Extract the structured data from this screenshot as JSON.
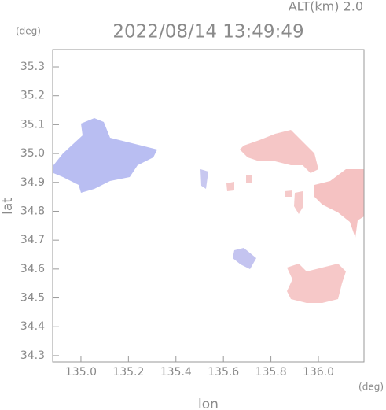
{
  "chart_data": {
    "type": "map",
    "title": "2022/08/14 13:49:49",
    "subtitle": "ALT(km) 2.0",
    "y_unit": "(deg)",
    "x_unit": "(deg)",
    "xlabel": "lon",
    "ylabel": "lat",
    "xlim": [
      134.881,
      136.192
    ],
    "ylim": [
      34.278,
      35.36
    ],
    "xticks": [
      {
        "value": 135,
        "label": "135.0"
      },
      135.2,
      135.4,
      135.6,
      135.8,
      {
        "value": 136,
        "label": "136.0"
      }
    ],
    "yticks": [
      34.3,
      34.4,
      34.5,
      34.6,
      34.7,
      34.8,
      34.9,
      {
        "value": 35,
        "label": "35.0"
      },
      35.1,
      35.2,
      35.3
    ]
  }
}
